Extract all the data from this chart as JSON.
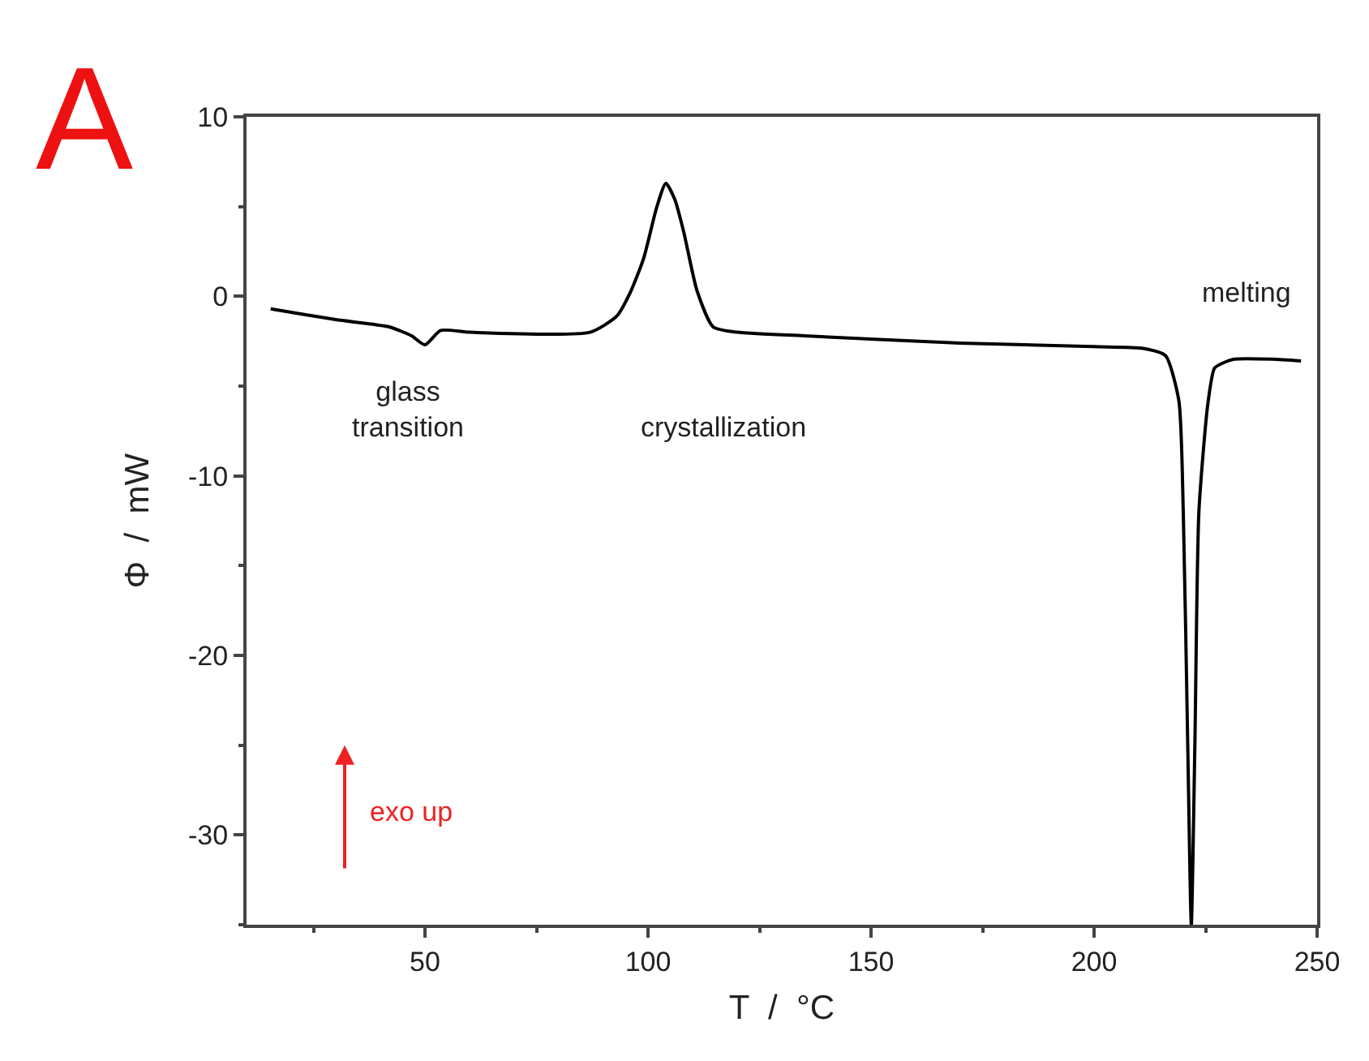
{
  "chart_data": {
    "type": "line",
    "xlabel": "T  /  °C",
    "ylabel": "Φ  /  mW",
    "annotations": [
      "A",
      "glass\ntransition",
      "crystallization",
      "melting",
      "exo up"
    ],
    "x": [
      15.4,
      30,
      42,
      47,
      50,
      53.5,
      60,
      87,
      93,
      96,
      99,
      102,
      104,
      106,
      108,
      111,
      114.6,
      120,
      135,
      170,
      200,
      211,
      216,
      219,
      220,
      221,
      221.8,
      222.6,
      223.5,
      225.5,
      227,
      229,
      231.4,
      240,
      246.4
    ],
    "series": [
      {
        "color": "#000000",
        "values": [
          -0.7,
          -1.3,
          -1.7,
          -2.2,
          -2.7,
          -1.9,
          -2.0,
          -2.0,
          -1.1,
          0.2,
          2.1,
          5.0,
          6.3,
          5.4,
          3.6,
          0.3,
          -1.7,
          -2.0,
          -2.2,
          -2.6,
          -2.8,
          -2.9,
          -3.3,
          -5.8,
          -12,
          -25,
          -35,
          -25,
          -12,
          -6,
          -4,
          -3.7,
          -3.5,
          -3.5,
          -3.6
        ]
      }
    ],
    "xlim": [
      10,
      250
    ],
    "xticks": [
      50,
      100,
      150,
      200,
      250
    ],
    "ylim": [
      -35,
      10
    ],
    "yticks": [
      -30,
      -20,
      -10,
      0,
      10
    ],
    "grid": false,
    "marker": "none",
    "line_style": "solid"
  }
}
